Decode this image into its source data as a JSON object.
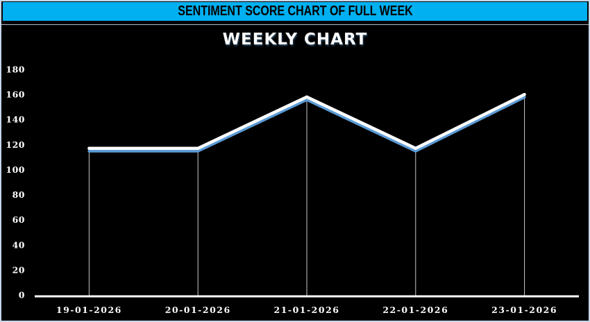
{
  "banner": {
    "title": "SENTIMENT SCORE CHART OF FULL WEEK",
    "bg_color": "#00B0F0",
    "text_color": "#000000"
  },
  "chart_data": {
    "type": "line",
    "title": "WEEKLY CHART",
    "categories": [
      "19-01-2026",
      "20-01-2026",
      "21-01-2026",
      "22-01-2026",
      "23-01-2026"
    ],
    "values": [
      117,
      117,
      158,
      117,
      160
    ],
    "yticks": [
      0,
      20,
      40,
      60,
      80,
      100,
      120,
      140,
      160,
      180
    ],
    "ylim": [
      0,
      180
    ],
    "xlabel": "",
    "ylabel": "",
    "grid": false,
    "legend": false,
    "drop_lines": true,
    "colors": {
      "background": "#000000",
      "line": "#ffffff",
      "line_shadow": "#5B9BD5",
      "axis": "#ffffff",
      "drop_line": "#e0e0e0",
      "tick_labels": "#ffffff",
      "title": "#ffffff"
    }
  }
}
